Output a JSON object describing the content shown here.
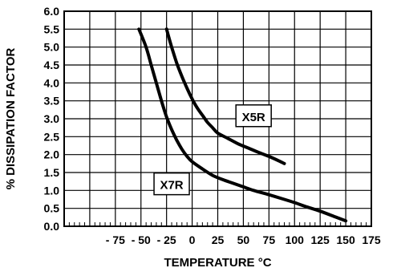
{
  "chart_data": {
    "type": "line",
    "title": "",
    "xlabel": "TEMPERATURE °C",
    "ylabel": "% DISSIPATION FACTOR",
    "xlim": [
      -125,
      175
    ],
    "ylim": [
      0,
      6
    ],
    "x_tick_labels": [
      "- 75",
      "- 50",
      "- 25",
      "0",
      "25",
      "50",
      "75",
      "100",
      "125",
      "150",
      "175"
    ],
    "x_tick_values": [
      -75,
      -50,
      -25,
      0,
      25,
      50,
      75,
      100,
      125,
      150,
      175
    ],
    "y_tick_labels": [
      "0.0",
      "0.5",
      "1.0",
      "1.5",
      "2.0",
      "2.5",
      "3.0",
      "3.5",
      "4.0",
      "4.5",
      "5.0",
      "5.5",
      "6.0"
    ],
    "y_tick_values": [
      0,
      0.5,
      1,
      1.5,
      2,
      2.5,
      3,
      3.5,
      4,
      4.5,
      5,
      5.5,
      6
    ],
    "grid": true,
    "series": [
      {
        "name": "X5R",
        "x": [
          -25,
          -20,
          -15,
          -10,
          -5,
          0,
          5,
          10,
          15,
          20,
          25,
          35,
          45,
          55,
          65,
          75,
          85,
          90
        ],
        "y": [
          5.5,
          5.0,
          4.55,
          4.18,
          3.85,
          3.55,
          3.3,
          3.1,
          2.9,
          2.75,
          2.6,
          2.45,
          2.3,
          2.18,
          2.06,
          1.95,
          1.82,
          1.75
        ]
      },
      {
        "name": "X7R",
        "x": [
          -52,
          -45,
          -40,
          -35,
          -30,
          -25,
          -20,
          -15,
          -10,
          -5,
          0,
          10,
          20,
          30,
          40,
          50,
          60,
          75,
          90,
          100,
          110,
          125,
          140,
          150
        ],
        "y": [
          5.5,
          5.0,
          4.5,
          4.0,
          3.5,
          3.05,
          2.7,
          2.4,
          2.15,
          1.95,
          1.8,
          1.6,
          1.42,
          1.3,
          1.2,
          1.1,
          1.0,
          0.88,
          0.75,
          0.66,
          0.56,
          0.42,
          0.26,
          0.15
        ]
      }
    ]
  }
}
